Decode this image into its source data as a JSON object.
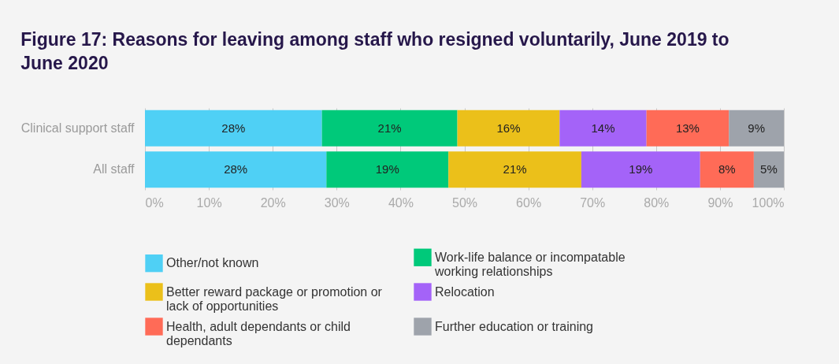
{
  "chart_data": {
    "type": "bar",
    "orientation": "horizontal",
    "stacked": true,
    "title": "Figure 17: Reasons for leaving among staff who resigned voluntarily, June 2019 to June 2020",
    "categories": [
      "Clinical support staff",
      "All staff"
    ],
    "series": [
      {
        "name": "Other/not known",
        "color": "#4fd0f5",
        "values": [
          27.7,
          28.4
        ],
        "value_labels": [
          "28%",
          "28%"
        ]
      },
      {
        "name": "Work-life balance or incompatable working relationships",
        "color": "#00c97a",
        "values": [
          21.2,
          19.1
        ],
        "value_labels": [
          "21%",
          "19%"
        ]
      },
      {
        "name": "Better reward package or promotion or lack of opportunities",
        "color": "#ebc01a",
        "values": [
          16.0,
          20.8
        ],
        "value_labels": [
          "16%",
          "21%"
        ]
      },
      {
        "name": "Relocation",
        "color": "#a463f8",
        "values": [
          13.6,
          18.6
        ],
        "value_labels": [
          "14%",
          "19%"
        ]
      },
      {
        "name": "Health, adult dependants or child dependants",
        "color": "#ff6b57",
        "values": [
          12.9,
          8.4
        ],
        "value_labels": [
          "13%",
          "8%"
        ]
      },
      {
        "name": "Further education or training",
        "color": "#9ea3ab",
        "values": [
          8.6,
          4.7
        ],
        "value_labels": [
          "9%",
          "5%"
        ]
      }
    ],
    "xlim": [
      0,
      100
    ],
    "xticks": [
      {
        "value": 0,
        "label": "0%"
      },
      {
        "value": 10,
        "label": "10%"
      },
      {
        "value": 20,
        "label": "20%"
      },
      {
        "value": 30,
        "label": "30%"
      },
      {
        "value": 40,
        "label": "40%"
      },
      {
        "value": 50,
        "label": "50%"
      },
      {
        "value": 60,
        "label": "60%"
      },
      {
        "value": 70,
        "label": "70%"
      },
      {
        "value": 80,
        "label": "80%"
      },
      {
        "value": 90,
        "label": "90%"
      },
      {
        "value": 100,
        "label": "100%"
      }
    ],
    "grid": "x",
    "legend": "bottom"
  }
}
